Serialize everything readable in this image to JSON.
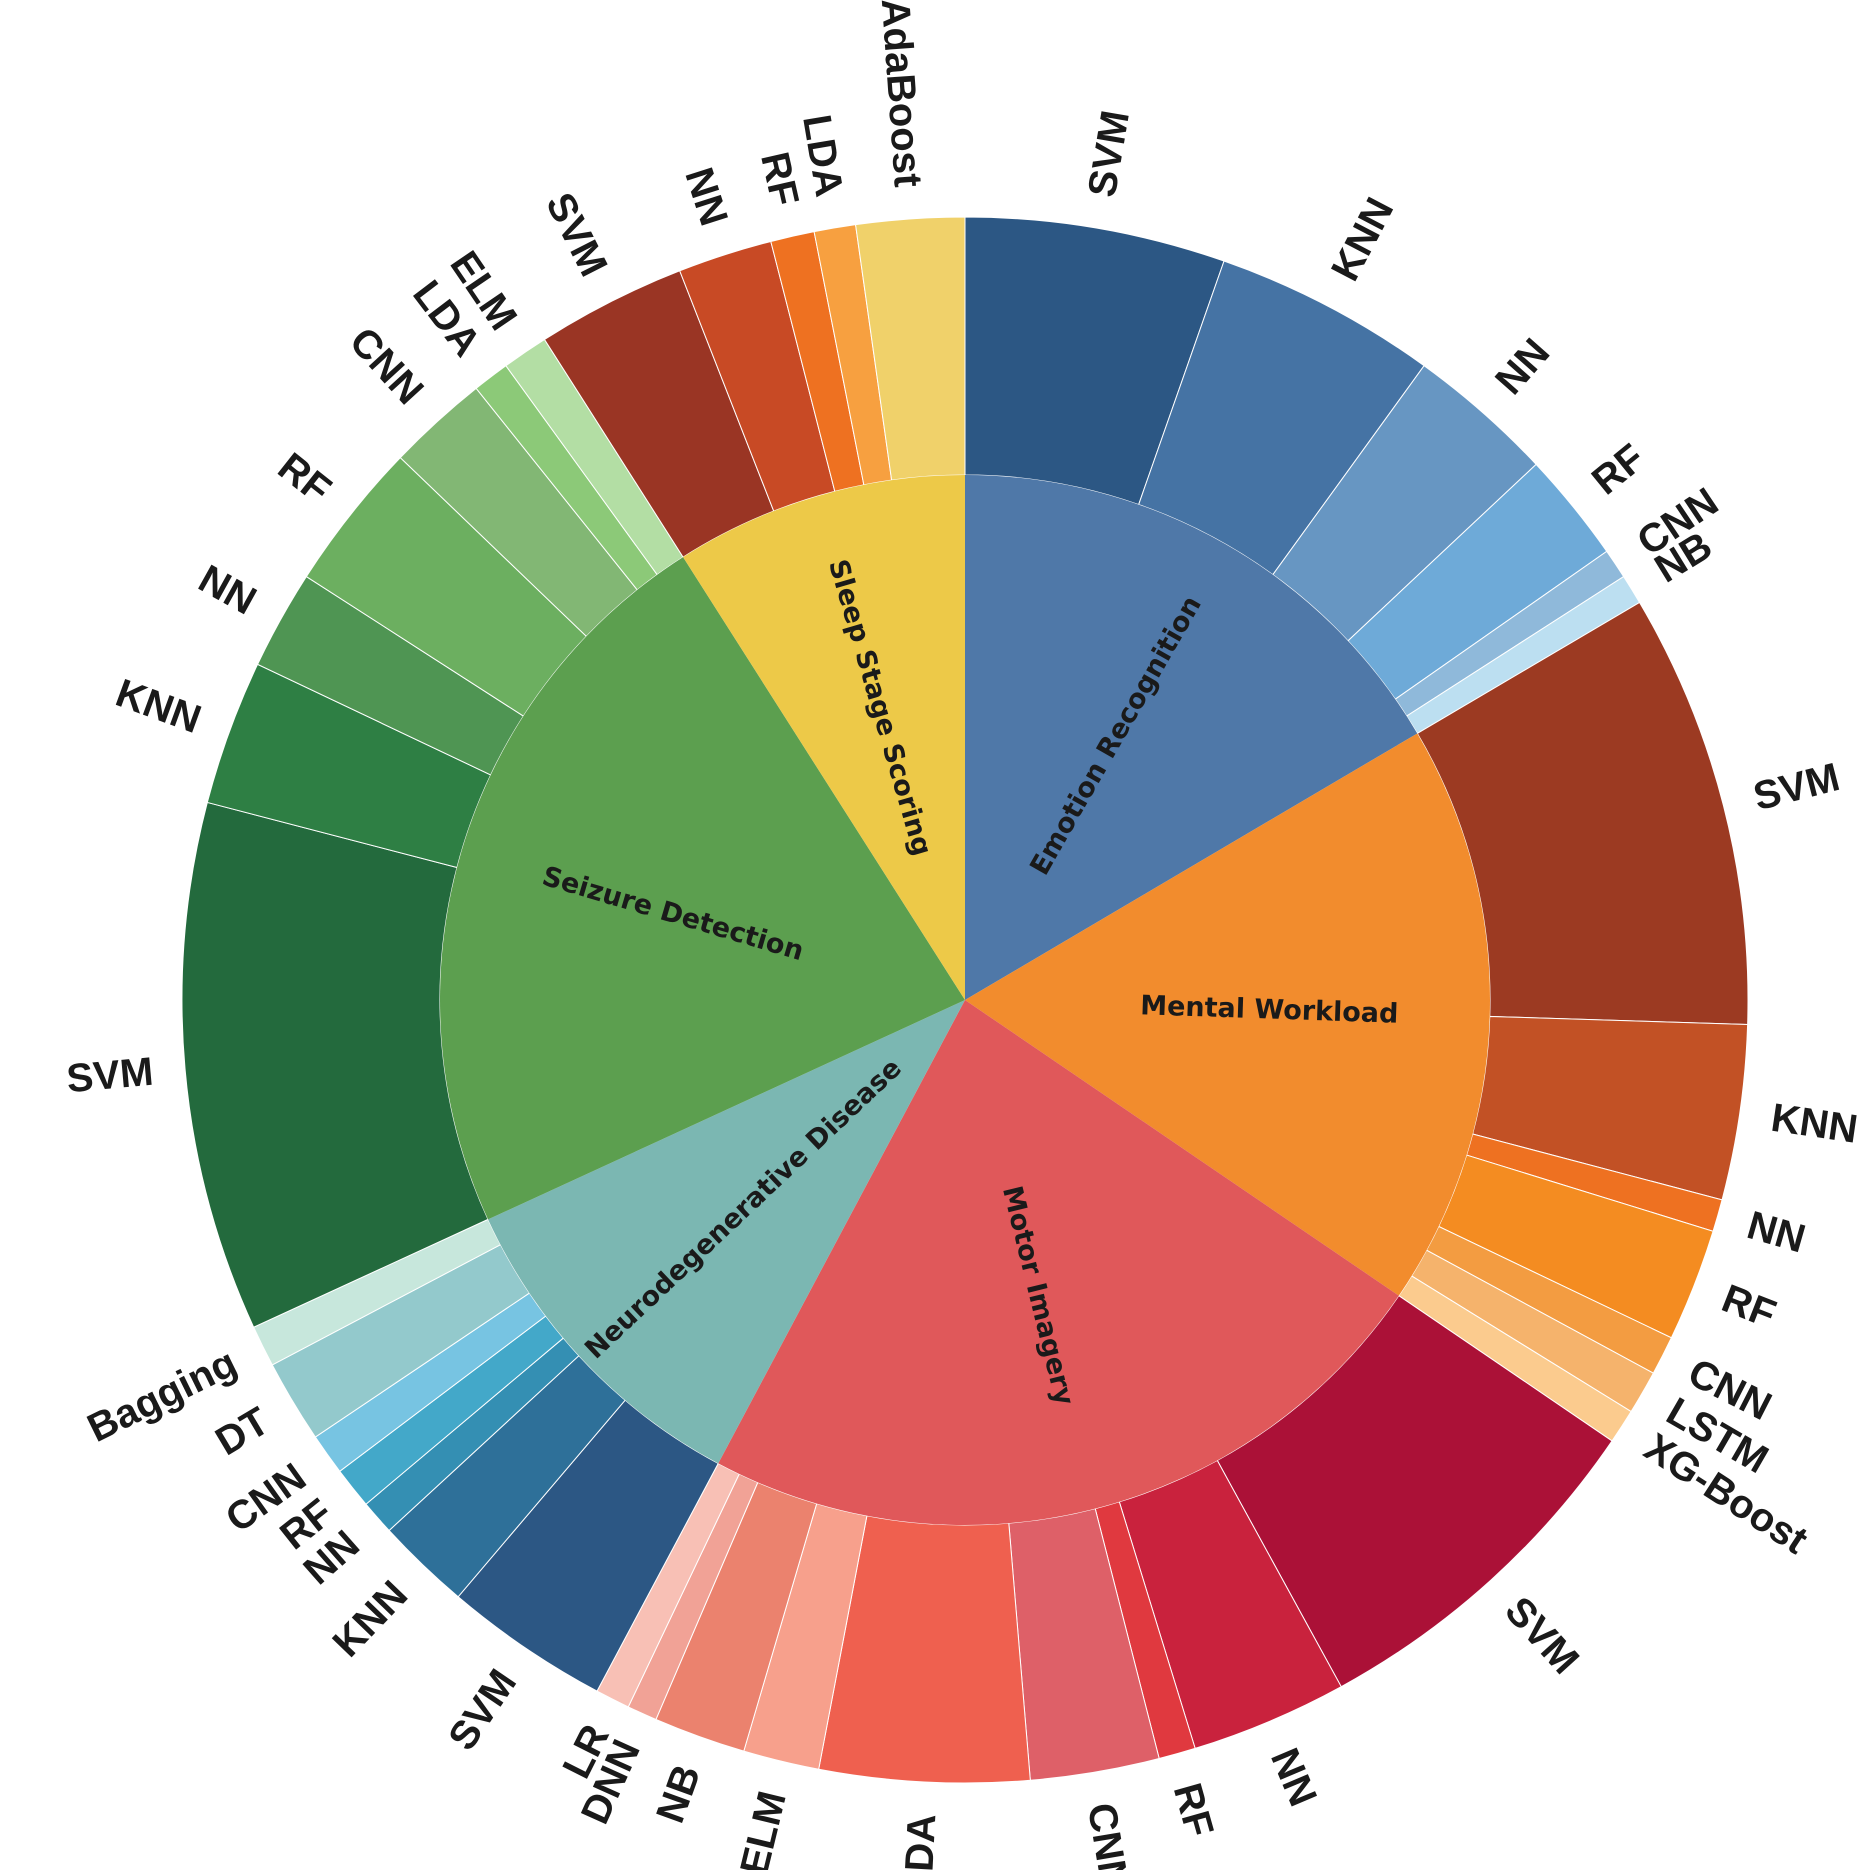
{
  "chart_data": {
    "type": "sunburst",
    "title": "",
    "categories": [
      {
        "name": "Emotion Recognition",
        "color": "#4f78a8",
        "children": [
          {
            "name": "SVM",
            "value": 11.3,
            "color": "#2c5784"
          },
          {
            "name": "KNN",
            "value": 9.7,
            "color": "#4573a4"
          },
          {
            "name": "NN",
            "value": 6.4,
            "color": "#6796c2"
          },
          {
            "name": "RF",
            "value": 4.8,
            "color": "#6eaad8"
          },
          {
            "name": "CNN",
            "value": 1.3,
            "color": "#8fb9da"
          },
          {
            "name": "NB",
            "value": 1.3,
            "color": "#bcdff1"
          }
        ]
      },
      {
        "name": "Mental Workload",
        "color": "#f28c2d",
        "children": [
          {
            "name": "SVM",
            "value": 18.9,
            "color": "#9c3a22"
          },
          {
            "name": "KNN",
            "value": 7.6,
            "color": "#c25125"
          },
          {
            "name": "NN",
            "value": 1.4,
            "color": "#ee7121"
          },
          {
            "name": "RF",
            "value": 4.9,
            "color": "#f48c21"
          },
          {
            "name": "CNN",
            "value": 1.7,
            "color": "#f39c41"
          },
          {
            "name": "LSTM",
            "value": 1.9,
            "color": "#f5b36c"
          },
          {
            "name": "XG-Boost",
            "value": 1.5,
            "color": "#fbcb8e"
          }
        ]
      },
      {
        "name": "Motor Imagery",
        "color": "#e0585a",
        "children": [
          {
            "name": "SVM",
            "value": 15.8,
            "color": "#ab1137"
          },
          {
            "name": "NN",
            "value": 6.8,
            "color": "#c9223d"
          },
          {
            "name": "RF",
            "value": 1.6,
            "color": "#e0393f"
          },
          {
            "name": "CNN",
            "value": 5.6,
            "color": "#de6068"
          },
          {
            "name": "LDA",
            "value": 9.1,
            "color": "#ef604f"
          },
          {
            "name": "ELM",
            "value": 3.3,
            "color": "#f7a08c"
          },
          {
            "name": "NB",
            "value": 4.0,
            "color": "#eb826e"
          },
          {
            "name": "DNN",
            "value": 1.3,
            "color": "#f1a296"
          },
          {
            "name": "LR",
            "value": 1.5,
            "color": "#f8c0b5"
          }
        ]
      },
      {
        "name": "Neurodegenerative Disease",
        "color": "#7bb7b2",
        "children": [
          {
            "name": "SVM",
            "value": 7.2,
            "color": "#2c5784"
          },
          {
            "name": "KNN",
            "value": 4.1,
            "color": "#2e7099"
          },
          {
            "name": "NN",
            "value": 1.5,
            "color": "#348fb3"
          },
          {
            "name": "RF",
            "value": 1.8,
            "color": "#43a8c9"
          },
          {
            "name": "CNN",
            "value": 1.8,
            "color": "#77c4e2"
          },
          {
            "name": "DT",
            "value": 3.6,
            "color": "#93c9cc"
          },
          {
            "name": "Bagging",
            "value": 1.8,
            "color": "#c7e7dc"
          }
        ]
      },
      {
        "name": "Seizure Detection",
        "color": "#5c9f4f",
        "children": [
          {
            "name": "SVM",
            "value": 23.0,
            "color": "#236a3d"
          },
          {
            "name": "KNN",
            "value": 6.3,
            "color": "#2e7f44"
          },
          {
            "name": "NN",
            "value": 4.3,
            "color": "#4f9553"
          },
          {
            "name": "RF",
            "value": 6.5,
            "color": "#6caf60"
          },
          {
            "name": "CNN",
            "value": 4.4,
            "color": "#82b774"
          },
          {
            "name": "LDA",
            "value": 1.6,
            "color": "#8cc978"
          },
          {
            "name": "ELM",
            "value": 2.0,
            "color": "#b3dea4"
          }
        ]
      },
      {
        "name": "Sleep Stage Scoring",
        "color": "#edc948",
        "children": [
          {
            "name": "SVM",
            "value": 6.5,
            "color": "#9a3524"
          },
          {
            "name": "NN",
            "value": 4.1,
            "color": "#c84a25"
          },
          {
            "name": "RF",
            "value": 1.9,
            "color": "#ee7121"
          },
          {
            "name": "LDA",
            "value": 1.8,
            "color": "#f7a040"
          },
          {
            "name": "AdaBoost",
            "value": 4.7,
            "color": "#f0d16a"
          }
        ]
      }
    ]
  }
}
